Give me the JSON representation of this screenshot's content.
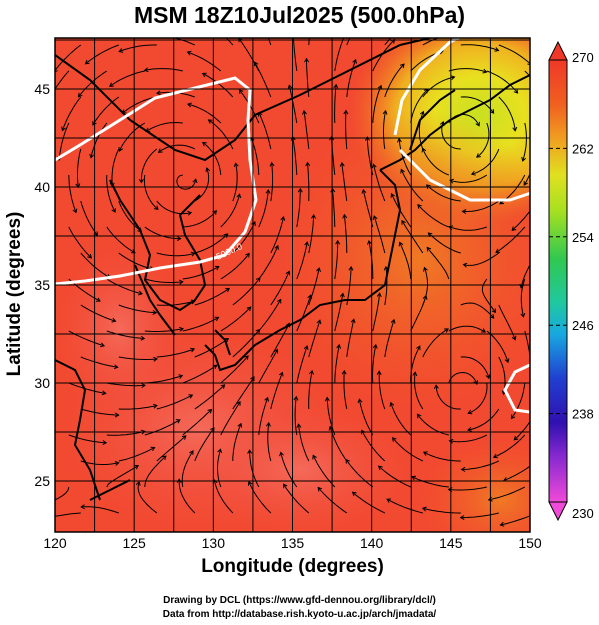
{
  "title": "MSM 18Z10Jul2025 (500.0hPa)",
  "axes": {
    "xlabel": "Longitude (degrees)",
    "ylabel": "Latitude  (degrees)",
    "x_ticks": [
      "120",
      "125",
      "130",
      "135",
      "140",
      "145",
      "150"
    ],
    "y_ticks": [
      "25",
      "30",
      "35",
      "40",
      "45"
    ],
    "x_range": [
      120,
      150
    ],
    "y_range": [
      22.4,
      47.6
    ]
  },
  "colorbar": {
    "ticks": [
      "270",
      "262",
      "254",
      "246",
      "238",
      "230"
    ],
    "range": [
      230,
      270
    ],
    "colors": [
      "#f04ad8",
      "#8a2ad0",
      "#2040d0",
      "#18a8e0",
      "#20c8a0",
      "#30c850",
      "#a8e020",
      "#e0e020",
      "#f0a020",
      "#f06020",
      "#f03828"
    ]
  },
  "contour": {
    "label": "5900.0",
    "color": "#ffffff"
  },
  "field": {
    "base_color": "#f24a30",
    "warm_color": "#f25a48",
    "cool_color": "#c8e020"
  },
  "credits": {
    "line1": "Drawing by DCL (https://www.gfd-dennou.org/library/dcl/)",
    "line2": "Data from http://database.rish.kyoto-u.ac.jp/arch/jmadata/"
  }
}
